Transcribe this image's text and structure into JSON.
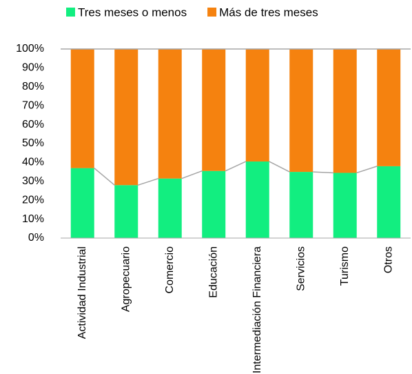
{
  "chart_data": {
    "type": "stacked_bar_100",
    "categories": [
      "Actividad Industrial",
      "Agropecuario",
      "Comercio",
      "Educación",
      "Intermediación Financiera",
      "Servicios",
      "Turismo",
      "Otros"
    ],
    "series": [
      {
        "name": "Tres meses o menos",
        "color": "#12ee80",
        "values": [
          37,
          28,
          31.5,
          35.5,
          40.5,
          35,
          34.5,
          38
        ]
      },
      {
        "name": "Más de tres meses",
        "color": "#f5820f",
        "values": [
          63,
          72,
          68.5,
          64.5,
          59.5,
          65,
          65.5,
          62
        ]
      }
    ],
    "ylim": [
      0,
      100
    ],
    "yticks": [
      {
        "value": 0,
        "label": "0%"
      },
      {
        "value": 10,
        "label": "10%"
      },
      {
        "value": 20,
        "label": "20%"
      },
      {
        "value": 30,
        "label": "30%"
      },
      {
        "value": 40,
        "label": "40%"
      },
      {
        "value": 50,
        "label": "50%"
      },
      {
        "value": 60,
        "label": "60%"
      },
      {
        "value": 70,
        "label": "70%"
      },
      {
        "value": 80,
        "label": "80%"
      },
      {
        "value": 90,
        "label": "90%"
      },
      {
        "value": 100,
        "label": "100%"
      }
    ],
    "grid": false,
    "legend": "top"
  }
}
